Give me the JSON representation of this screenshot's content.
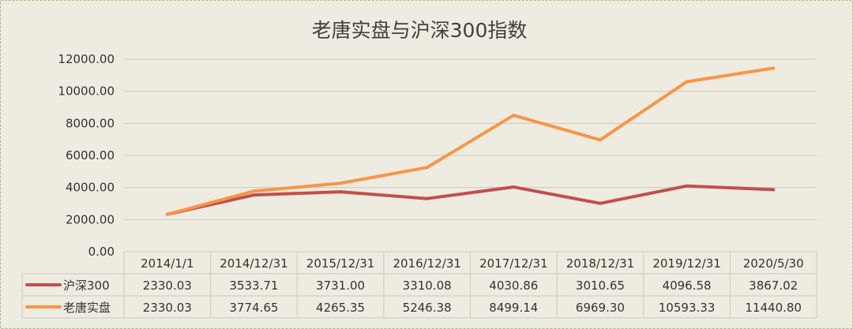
{
  "chart_data": {
    "type": "line",
    "title": "老唐实盘与沪深300指数",
    "categories": [
      "2014/1/1",
      "2014/12/31",
      "2015/12/31",
      "2016/12/31",
      "2017/12/31",
      "2018/12/31",
      "2019/12/31",
      "2020/5/30"
    ],
    "y_ticks": [
      "0.00",
      "2000.00",
      "4000.00",
      "6000.00",
      "8000.00",
      "10000.00",
      "12000.00"
    ],
    "ylim": [
      0,
      12000
    ],
    "grid": true,
    "data_table": true,
    "series": [
      {
        "name": "沪深300",
        "color": "#c0504d",
        "values": [
          2330.03,
          3533.71,
          3731.0,
          3310.08,
          4030.86,
          3010.65,
          4096.58,
          3867.02
        ],
        "labels": [
          "2330.03",
          "3533.71",
          "3731.00",
          "3310.08",
          "4030.86",
          "3010.65",
          "4096.58",
          "3867.02"
        ]
      },
      {
        "name": "老唐实盘",
        "color": "#f79646",
        "values": [
          2330.03,
          3774.65,
          4265.35,
          5246.38,
          8499.14,
          6969.3,
          10593.33,
          11440.8
        ],
        "labels": [
          "2330.03",
          "3774.65",
          "4265.35",
          "5246.38",
          "8499.14",
          "6969.30",
          "10593.33",
          "11440.80"
        ]
      }
    ]
  },
  "colors": {
    "background": "#eeebe1",
    "frame_border": "#b9b07a",
    "grid": "#cbc8bd",
    "text": "#333333",
    "title": "#404040"
  }
}
